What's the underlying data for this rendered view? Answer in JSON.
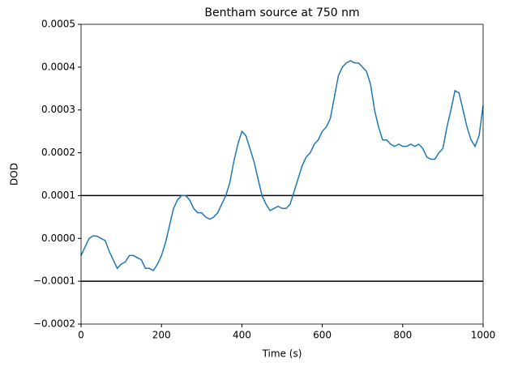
{
  "chart_data": {
    "type": "line",
    "title": "Bentham source at 750 nm",
    "xlabel": "Time (s)",
    "ylabel": "DOD",
    "x": [
      0,
      10,
      20,
      30,
      40,
      50,
      60,
      70,
      80,
      90,
      100,
      110,
      120,
      130,
      140,
      150,
      160,
      170,
      180,
      190,
      200,
      210,
      220,
      230,
      240,
      250,
      260,
      270,
      280,
      290,
      300,
      310,
      320,
      330,
      340,
      350,
      360,
      370,
      380,
      390,
      400,
      410,
      420,
      430,
      440,
      450,
      460,
      470,
      480,
      490,
      500,
      510,
      520,
      530,
      540,
      550,
      560,
      570,
      580,
      590,
      600,
      610,
      620,
      630,
      640,
      650,
      660,
      670,
      680,
      690,
      700,
      710,
      720,
      730,
      740,
      750,
      760,
      770,
      780,
      790,
      800,
      810,
      820,
      830,
      840,
      850,
      860,
      870,
      880,
      890,
      900,
      910,
      920,
      930,
      940,
      950,
      960,
      970,
      980,
      990,
      1000
    ],
    "series": [
      {
        "name": "DOD",
        "color": "#1f77b4",
        "values": [
          -4e-05,
          -2e-05,
          0,
          6e-06,
          5e-06,
          0,
          -5e-06,
          -3e-05,
          -5e-05,
          -7e-05,
          -6e-05,
          -5.5e-05,
          -4e-05,
          -4e-05,
          -4.5e-05,
          -5e-05,
          -7e-05,
          -7e-05,
          -7.5e-05,
          -6e-05,
          -4e-05,
          -1e-05,
          3e-05,
          7e-05,
          9e-05,
          0.0001,
          0.0001,
          9e-05,
          7e-05,
          6e-05,
          6e-05,
          5e-05,
          4.5e-05,
          5e-05,
          6e-05,
          8e-05,
          0.0001,
          0.00013,
          0.00018,
          0.00022,
          0.00025,
          0.00024,
          0.00021,
          0.00018,
          0.00014,
          0.0001,
          8e-05,
          6.5e-05,
          7e-05,
          7.5e-05,
          7e-05,
          7e-05,
          8e-05,
          0.00011,
          0.00014,
          0.00017,
          0.00019,
          0.0002,
          0.00022,
          0.00023,
          0.00025,
          0.00026,
          0.00028,
          0.00033,
          0.00038,
          0.0004,
          0.00041,
          0.000415,
          0.00041,
          0.00041,
          0.0004,
          0.00039,
          0.00036,
          0.0003,
          0.00026,
          0.00023,
          0.00023,
          0.00022,
          0.000215,
          0.00022,
          0.000215,
          0.000215,
          0.00022,
          0.000215,
          0.00022,
          0.00021,
          0.00019,
          0.000185,
          0.000185,
          0.0002,
          0.00021,
          0.00026,
          0.0003,
          0.000345,
          0.00034,
          0.0003,
          0.00026,
          0.00023,
          0.000215,
          0.00024,
          0.00031
        ]
      }
    ],
    "hlines": [
      0.0001,
      -0.0001
    ],
    "hline_color": "#000000",
    "xlim": [
      0,
      1000
    ],
    "xticks": [
      0,
      200,
      400,
      600,
      800,
      1000
    ],
    "ylim": [
      -0.0002,
      0.0005
    ],
    "yticks": [
      {
        "value": -0.0002,
        "label": "−0.0002"
      },
      {
        "value": -0.0001,
        "label": "−0.0001"
      },
      {
        "value": 0,
        "label": "0.0000"
      },
      {
        "value": 0.0001,
        "label": "0.0001"
      },
      {
        "value": 0.0002,
        "label": "0.0002"
      },
      {
        "value": 0.0003,
        "label": "0.0003"
      },
      {
        "value": 0.0004,
        "label": "0.0004"
      },
      {
        "value": 0.0005,
        "label": "0.0005"
      }
    ]
  }
}
